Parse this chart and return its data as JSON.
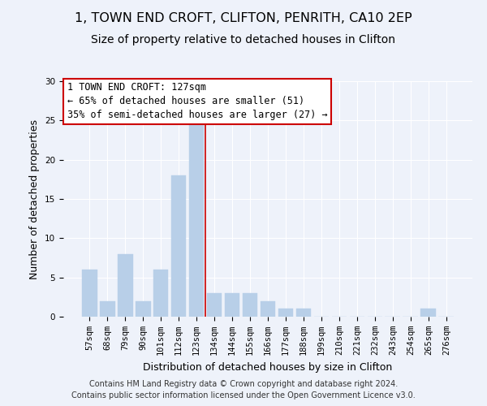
{
  "title": "1, TOWN END CROFT, CLIFTON, PENRITH, CA10 2EP",
  "subtitle": "Size of property relative to detached houses in Clifton",
  "xlabel": "Distribution of detached houses by size in Clifton",
  "ylabel": "Number of detached properties",
  "bar_labels": [
    "57sqm",
    "68sqm",
    "79sqm",
    "90sqm",
    "101sqm",
    "112sqm",
    "123sqm",
    "134sqm",
    "144sqm",
    "155sqm",
    "166sqm",
    "177sqm",
    "188sqm",
    "199sqm",
    "210sqm",
    "221sqm",
    "232sqm",
    "243sqm",
    "254sqm",
    "265sqm",
    "276sqm"
  ],
  "bar_values": [
    6,
    2,
    8,
    2,
    6,
    18,
    25,
    3,
    3,
    3,
    2,
    1,
    1,
    0,
    0,
    0,
    0,
    0,
    0,
    1,
    0
  ],
  "bar_color": "#b8cfe8",
  "bar_edgecolor": "#b8cfe8",
  "vline_x": 6.5,
  "vline_color": "#cc0000",
  "ylim": [
    0,
    30
  ],
  "yticks": [
    0,
    5,
    10,
    15,
    20,
    25,
    30
  ],
  "annotation_text": "1 TOWN END CROFT: 127sqm\n← 65% of detached houses are smaller (51)\n35% of semi-detached houses are larger (27) →",
  "annotation_box_color": "#ffffff",
  "annotation_box_edgecolor": "#cc0000",
  "footer_line1": "Contains HM Land Registry data © Crown copyright and database right 2024.",
  "footer_line2": "Contains public sector information licensed under the Open Government Licence v3.0.",
  "background_color": "#eef2fa",
  "grid_color": "#ffffff",
  "title_fontsize": 11.5,
  "subtitle_fontsize": 10,
  "axis_label_fontsize": 9,
  "tick_fontsize": 7.5,
  "annotation_fontsize": 8.5,
  "footer_fontsize": 7
}
